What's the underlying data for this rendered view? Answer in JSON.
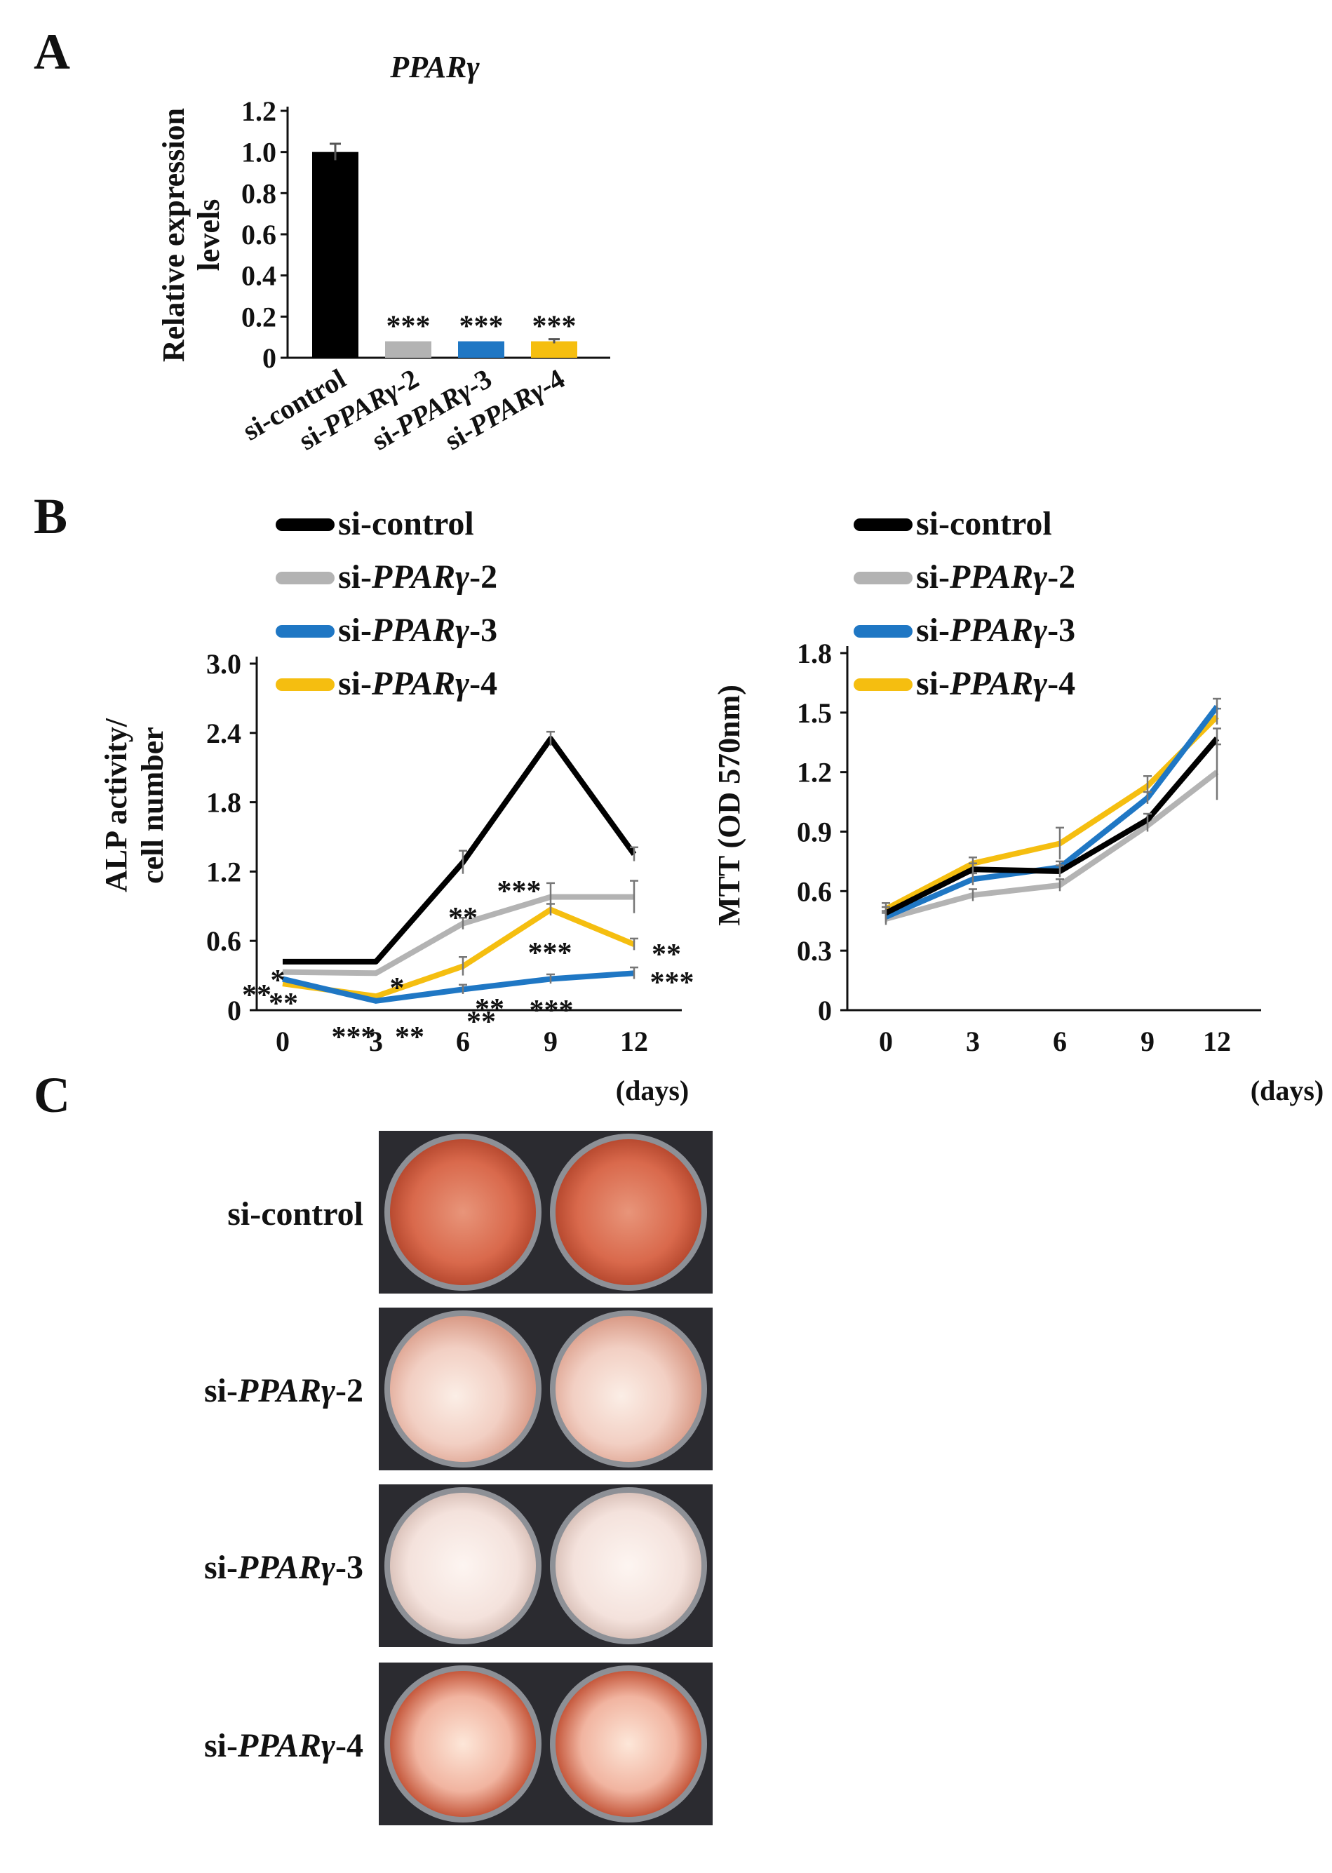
{
  "panels": {
    "a": "A",
    "b": "B",
    "c": "C"
  },
  "series_colors": {
    "si-control": "#000000",
    "si-PPARγ-2": "#b3b3b3",
    "si-PPARγ-3": "#1f77c4",
    "si-PPARγ-4": "#f5be10"
  },
  "chart_data": [
    {
      "id": "A",
      "type": "bar",
      "title": "PPARγ",
      "ylabel": "Relative expression levels",
      "ylim": [
        0,
        1.2
      ],
      "yticks": [
        "0",
        "0.2",
        "0.4",
        "0.6",
        "0.8",
        "1.0",
        "1.2"
      ],
      "categories": [
        "si-control",
        "si-PPARγ-2",
        "si-PPARγ-3",
        "si-PPARγ-4"
      ],
      "tick_labels": [
        {
          "prefix": "si-control",
          "italic": "",
          "suffix": ""
        },
        {
          "prefix": "si-",
          "italic": "PPARγ",
          "suffix": "-2"
        },
        {
          "prefix": "si-",
          "italic": "PPARγ",
          "suffix": "-3"
        },
        {
          "prefix": "si-",
          "italic": "PPARγ",
          "suffix": "-4"
        }
      ],
      "values": [
        1.0,
        0.08,
        0.08,
        0.08
      ],
      "errors": [
        0.04,
        0.0,
        0.0,
        0.01
      ],
      "colors": [
        "#000000",
        "#b3b3b3",
        "#1f77c4",
        "#f5be10"
      ],
      "annotations": [
        "",
        "***",
        "***",
        "***"
      ]
    },
    {
      "id": "B-left",
      "type": "line",
      "ylabel_lines": [
        "ALP activity/",
        "cell number"
      ],
      "xlabel": "(days)",
      "x": [
        0,
        3,
        6,
        9,
        12
      ],
      "xticks": [
        "0",
        "3",
        "6",
        "9",
        "12"
      ],
      "ylim": [
        0,
        3.0
      ],
      "yticks": [
        "0",
        "0.6",
        "1.2",
        "1.8",
        "2.4",
        "3.0"
      ],
      "series": [
        {
          "name": "si-control",
          "color": "#000000",
          "values": [
            0.42,
            0.42,
            1.28,
            2.35,
            1.35
          ],
          "errors": [
            0,
            0,
            0.1,
            0.06,
            0.06
          ]
        },
        {
          "name": "si-PPARγ-2",
          "color": "#b3b3b3",
          "values": [
            0.33,
            0.32,
            0.75,
            0.98,
            0.98
          ],
          "errors": [
            0,
            0,
            0.05,
            0.12,
            0.14
          ]
        },
        {
          "name": "si-PPARγ-3",
          "color": "#1f77c4",
          "values": [
            0.27,
            0.08,
            0.18,
            0.27,
            0.32
          ],
          "errors": [
            0,
            0,
            0.04,
            0.04,
            0.05
          ]
        },
        {
          "name": "si-PPARγ-4",
          "color": "#f5be10",
          "values": [
            0.23,
            0.12,
            0.38,
            0.87,
            0.57
          ],
          "errors": [
            0,
            0,
            0.08,
            0.05,
            0.05
          ]
        }
      ],
      "legend": [
        {
          "name": "si-control",
          "prefix": "si-control",
          "italic": "",
          "suffix": ""
        },
        {
          "name": "si-PPARγ-2",
          "prefix": "si-",
          "italic": "PPARγ",
          "suffix": "-2"
        },
        {
          "name": "si-PPARγ-3",
          "prefix": "si-",
          "italic": "PPARγ",
          "suffix": "-3"
        },
        {
          "name": "si-PPARγ-4",
          "prefix": "si-",
          "italic": "PPARγ",
          "suffix": "-4"
        }
      ],
      "annotations": [
        "*",
        "**",
        "**",
        "***",
        "*",
        "**",
        "**",
        "**",
        "**",
        "***",
        "***",
        "***",
        "**",
        "***"
      ]
    },
    {
      "id": "B-right",
      "type": "line",
      "ylabel": "MTT  (OD 570nm)",
      "xlabel": "(days)",
      "x": [
        0,
        3,
        6,
        9,
        12
      ],
      "xticks": [
        "0",
        "3",
        "6",
        "9",
        "12"
      ],
      "ylim": [
        0,
        1.8
      ],
      "yticks": [
        "0",
        "0.3",
        "0.6",
        "0.9",
        "1.2",
        "1.5",
        "1.8"
      ],
      "series": [
        {
          "name": "si-control",
          "color": "#000000",
          "values": [
            0.49,
            0.71,
            0.7,
            0.96,
            1.37
          ],
          "errors": [
            0.03,
            0.03,
            0.03,
            0.03,
            0.05
          ]
        },
        {
          "name": "si-PPARγ-2",
          "color": "#b3b3b3",
          "values": [
            0.46,
            0.58,
            0.63,
            0.93,
            1.2
          ],
          "errors": [
            0.03,
            0.03,
            0.03,
            0.03,
            0.14
          ]
        },
        {
          "name": "si-PPARγ-3",
          "color": "#1f77c4",
          "values": [
            0.47,
            0.66,
            0.72,
            1.07,
            1.53
          ],
          "errors": [
            0.03,
            0.03,
            0.03,
            0.03,
            0.04
          ]
        },
        {
          "name": "si-PPARγ-4",
          "color": "#f5be10",
          "values": [
            0.51,
            0.74,
            0.84,
            1.13,
            1.48
          ],
          "errors": [
            0.03,
            0.03,
            0.08,
            0.05,
            0.04
          ]
        }
      ],
      "legend": [
        {
          "name": "si-control",
          "prefix": "si-control",
          "italic": "",
          "suffix": ""
        },
        {
          "name": "si-PPARγ-2",
          "prefix": "si-",
          "italic": "PPARγ",
          "suffix": "-2"
        },
        {
          "name": "si-PPARγ-3",
          "prefix": "si-",
          "italic": "PPARγ",
          "suffix": "-3"
        },
        {
          "name": "si-PPARγ-4",
          "prefix": "si-",
          "italic": "PPARγ",
          "suffix": "-4"
        }
      ]
    }
  ],
  "panel_c": {
    "rows": [
      {
        "prefix": "si-control",
        "italic": "",
        "suffix": "",
        "stain": "strong"
      },
      {
        "prefix": "si-",
        "italic": "PPARγ",
        "suffix": "-2",
        "stain": "weak"
      },
      {
        "prefix": "si-",
        "italic": "PPARγ",
        "suffix": "-3",
        "stain": "none"
      },
      {
        "prefix": "si-",
        "italic": "PPARγ",
        "suffix": "-4",
        "stain": "moderate"
      }
    ]
  }
}
